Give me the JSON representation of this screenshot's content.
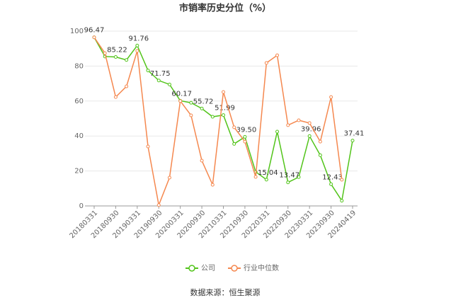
{
  "chart_data": {
    "type": "line",
    "title": "市销率历史分位（%）",
    "categories": [
      "20180331",
      null,
      "20180930",
      null,
      "20190331",
      null,
      "20190930",
      null,
      "20200331",
      null,
      "20200930",
      null,
      "20210331",
      null,
      "20210930",
      null,
      "20220331",
      null,
      "20220930",
      null,
      "20230331",
      null,
      "20230930",
      null,
      "20240419"
    ],
    "series": [
      {
        "name": "公司",
        "color": "#52c41a",
        "values": [
          96.47,
          85.5,
          85.22,
          83.5,
          91.76,
          77.5,
          71.75,
          69.5,
          60.17,
          59,
          55.72,
          51,
          51.99,
          35.5,
          39.5,
          19.5,
          15.04,
          42.5,
          13.47,
          16.5,
          39.96,
          29,
          12.43,
          3,
          37.41
        ],
        "value_labels": [
          "96.47",
          null,
          "85.22",
          null,
          "91.76",
          null,
          "71.75",
          null,
          "60.17",
          null,
          "55.72",
          null,
          "51.99",
          null,
          "39.50",
          null,
          "15.04",
          null,
          "13.47",
          null,
          "39.96",
          null,
          "12.43",
          null,
          "37.41"
        ]
      },
      {
        "name": "行业中位数",
        "color": "#f5884f",
        "values": [
          96.47,
          87.4,
          62.3,
          68.4,
          88.7,
          34,
          0.5,
          16.2,
          60,
          51.8,
          25.9,
          12.1,
          65.2,
          45,
          36.8,
          16.6,
          81.8,
          86.2,
          46.2,
          49,
          47.4,
          36.8,
          62.3,
          15,
          null
        ]
      }
    ],
    "ylim": [
      0,
      100
    ],
    "yticks": [
      0,
      20,
      40,
      60,
      80,
      100
    ],
    "grid": true,
    "source": "数据来源：恒生聚源"
  }
}
